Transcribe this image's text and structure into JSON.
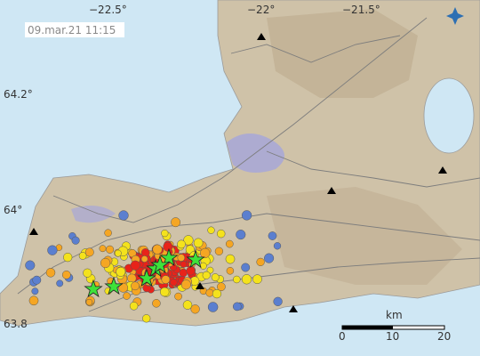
{
  "map": {
    "timestamp": "09.mar.21  11:15",
    "longitude_labels": [
      "−22.5°",
      "−22°",
      "−21.5°"
    ],
    "latitude_labels": [
      "64.2°",
      "64°",
      "63.8"
    ],
    "scale": {
      "unit": "km",
      "ticks": [
        0,
        10,
        20
      ]
    }
  }
}
